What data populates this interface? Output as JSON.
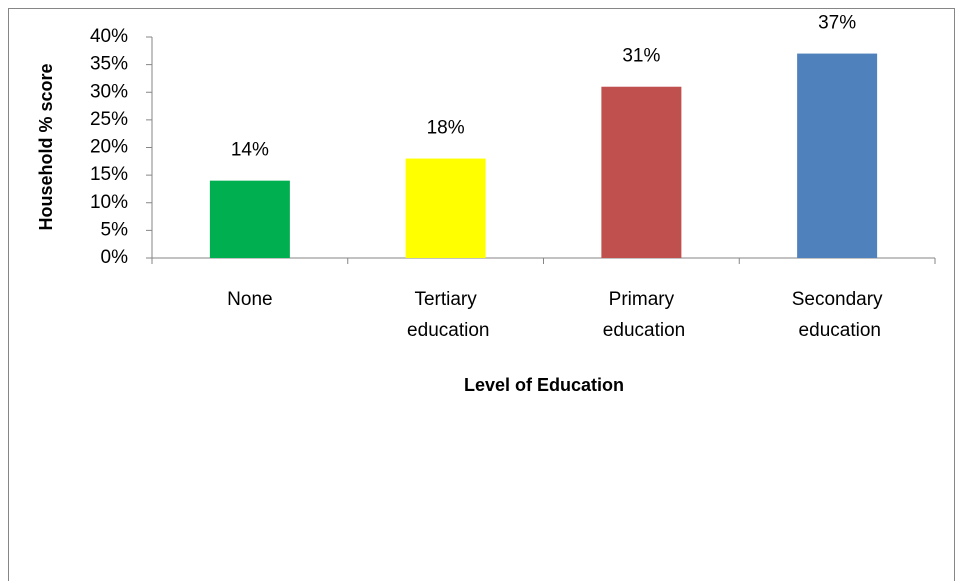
{
  "chart_data": {
    "type": "bar",
    "y_label": "Household % score",
    "x_label": "Level of Education",
    "categories": [
      "None",
      "Tertiary education",
      "Primary education",
      "Secondary education"
    ],
    "values": [
      14,
      18,
      31,
      37
    ],
    "value_labels": [
      "14%",
      "18%",
      "31%",
      "37%"
    ],
    "colors": [
      "#00b050",
      "#ffff00",
      "#c0504d",
      "#4f81bd"
    ],
    "ylim": [
      0,
      40
    ],
    "yticks": [
      {
        "value": 0,
        "label": "0%"
      },
      {
        "value": 5,
        "label": "5%"
      },
      {
        "value": 10,
        "label": "10%"
      },
      {
        "value": 15,
        "label": "15%"
      },
      {
        "value": 20,
        "label": "20%"
      },
      {
        "value": 25,
        "label": "25%"
      },
      {
        "value": 30,
        "label": "30%"
      },
      {
        "value": 35,
        "label": "35%"
      },
      {
        "value": 40,
        "label": "40%"
      }
    ],
    "grid": false
  }
}
